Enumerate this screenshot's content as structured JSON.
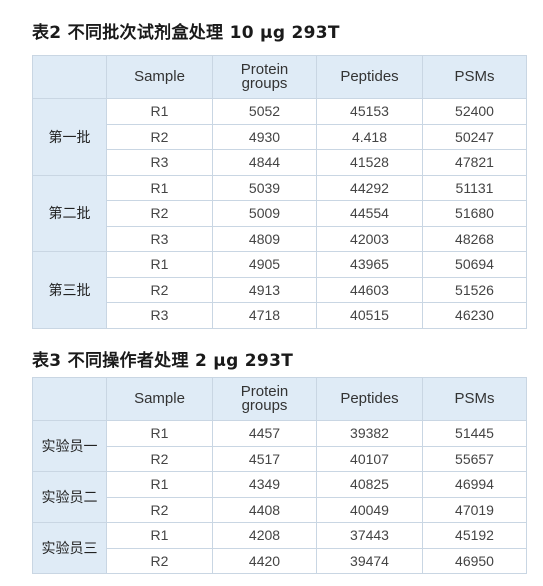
{
  "table2": {
    "title": "表2  不同批次试剂盒处理 10 μg 293T",
    "headers": {
      "sample": "Sample",
      "protein_line1": "Protein",
      "protein_line2": "groups",
      "peptides": "Peptides",
      "psms": "PSMs"
    },
    "groups": [
      {
        "name": "第一批",
        "rows": [
          {
            "sample": "R1",
            "protein": "5052",
            "peptides": "45153",
            "psms": "52400"
          },
          {
            "sample": "R2",
            "protein": "4930",
            "peptides": "4.418",
            "psms": "50247"
          },
          {
            "sample": "R3",
            "protein": "4844",
            "peptides": "41528",
            "psms": "47821"
          }
        ]
      },
      {
        "name": "第二批",
        "rows": [
          {
            "sample": "R1",
            "protein": "5039",
            "peptides": "44292",
            "psms": "51131"
          },
          {
            "sample": "R2",
            "protein": "5009",
            "peptides": "44554",
            "psms": "51680"
          },
          {
            "sample": "R3",
            "protein": "4809",
            "peptides": "42003",
            "psms": "48268"
          }
        ]
      },
      {
        "name": "第三批",
        "rows": [
          {
            "sample": "R1",
            "protein": "4905",
            "peptides": "43965",
            "psms": "50694"
          },
          {
            "sample": "R2",
            "protein": "4913",
            "peptides": "44603",
            "psms": "51526"
          },
          {
            "sample": "R3",
            "protein": "4718",
            "peptides": "40515",
            "psms": "46230"
          }
        ]
      }
    ]
  },
  "table3": {
    "title": "表3  不同操作者处理 2 μg 293T",
    "headers": {
      "sample": "Sample",
      "protein_line1": "Protein",
      "protein_line2": "groups",
      "peptides": "Peptides",
      "psms": "PSMs"
    },
    "groups": [
      {
        "name": "实验员一",
        "rows": [
          {
            "sample": "R1",
            "protein": "4457",
            "peptides": "39382",
            "psms": "51445"
          },
          {
            "sample": "R2",
            "protein": "4517",
            "peptides": "40107",
            "psms": "55657"
          }
        ]
      },
      {
        "name": "实验员二",
        "rows": [
          {
            "sample": "R1",
            "protein": "4349",
            "peptides": "40825",
            "psms": "46994"
          },
          {
            "sample": "R2",
            "protein": "4408",
            "peptides": "40049",
            "psms": "47019"
          }
        ]
      },
      {
        "name": "实验员三",
        "rows": [
          {
            "sample": "R1",
            "protein": "4208",
            "peptides": "37443",
            "psms": "45192"
          },
          {
            "sample": "R2",
            "protein": "4420",
            "peptides": "39474",
            "psms": "46950"
          }
        ]
      }
    ]
  },
  "colors": {
    "header_bg": "#dfebf6",
    "border": "#c9d6e3"
  }
}
